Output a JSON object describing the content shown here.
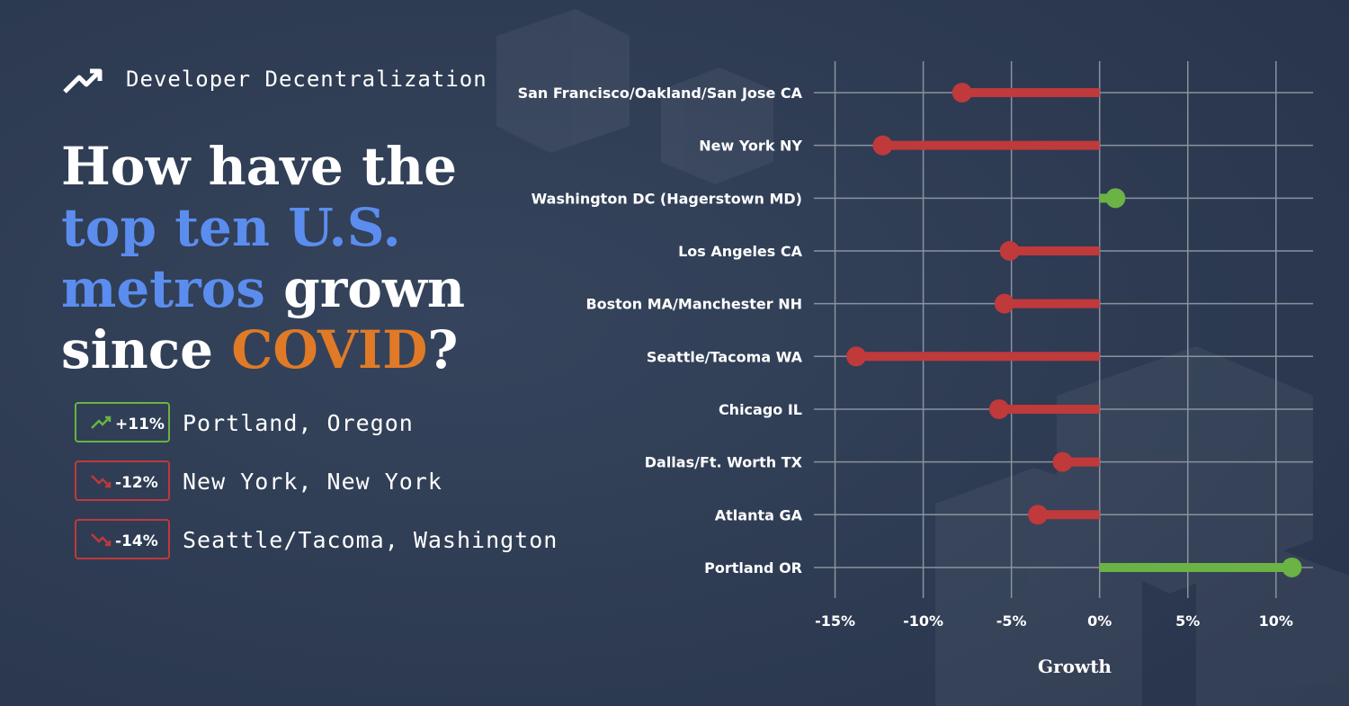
{
  "header": {
    "kicker": "Developer Decentralization",
    "title_lines": [
      [
        {
          "text": "How have the",
          "color": "#ffffff"
        }
      ],
      [
        {
          "text": "top ten U.S.",
          "color": "#5b8def"
        }
      ],
      [
        {
          "text": "metros ",
          "color": "#5b8def"
        },
        {
          "text": "grown",
          "color": "#ffffff"
        }
      ],
      [
        {
          "text": "since ",
          "color": "#ffffff"
        },
        {
          "text": "COVID",
          "color": "#e07a26"
        },
        {
          "text": "?",
          "color": "#ffffff"
        }
      ]
    ]
  },
  "highlights": [
    {
      "badge": "+11%",
      "label": "Portland, Oregon",
      "color": "#6ab344",
      "icon": "up"
    },
    {
      "badge": "-12%",
      "label": "New York, New York",
      "color": "#c0393b",
      "icon": "down"
    },
    {
      "badge": "-14%",
      "label": "Seattle/Tacoma, Washington",
      "color": "#c0393b",
      "icon": "down"
    }
  ],
  "chart_data": {
    "type": "lollipop",
    "x_label": "Growth",
    "categories": [
      "San Francisco/Oakland/San Jose CA",
      "New York NY",
      "Washington DC (Hagerstown MD)",
      "Los Angeles CA",
      "Boston MA/Manchester NH",
      "Seattle/Tacoma WA",
      "Chicago IL",
      "Dallas/Ft. Worth TX",
      "Atlanta GA",
      "Portland OR"
    ],
    "values": [
      -7.8,
      -12.3,
      0.9,
      -5.1,
      -5.4,
      -13.8,
      -5.7,
      -2.1,
      -3.5,
      10.9
    ],
    "colors": [
      "#c0393b",
      "#c0393b",
      "#6ab344",
      "#c0393b",
      "#c0393b",
      "#c0393b",
      "#c0393b",
      "#c0393b",
      "#c0393b",
      "#6ab344"
    ],
    "xlim": [
      -16.2,
      12.1
    ],
    "xticks": [
      {
        "value": -15,
        "label": "-15%"
      },
      {
        "value": -10,
        "label": "-10%"
      },
      {
        "value": -5,
        "label": "-5%"
      },
      {
        "value": 0,
        "label": "0%"
      },
      {
        "value": 5,
        "label": "5%"
      },
      {
        "value": 10,
        "label": "10%"
      }
    ],
    "grid": true
  }
}
